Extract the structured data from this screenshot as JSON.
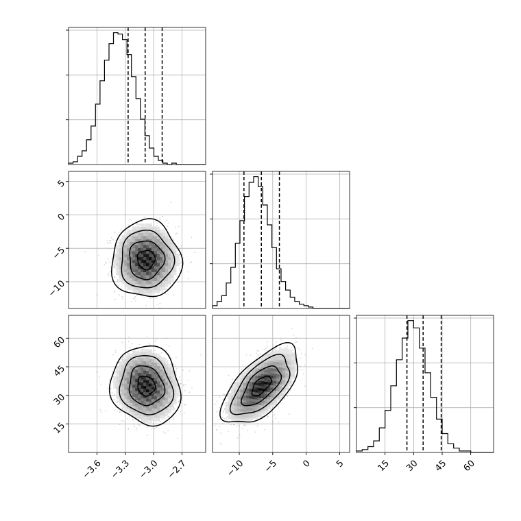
{
  "chart_data": {
    "type": "corner",
    "parameters": [
      {
        "xlim": [
          -3.9,
          -2.45
        ],
        "xticks": [
          -3.6,
          -3.3,
          -3.0,
          -2.7
        ],
        "xtick_labels": [
          "−3.6",
          "−3.3",
          "−3.0",
          "−2.7"
        ]
      },
      {
        "xlim": [
          -14,
          6.5
        ],
        "xticks": [
          -10,
          -5,
          0,
          5
        ],
        "xtick_labels": [
          "−10",
          "−5",
          "0",
          "5"
        ],
        "yticks": [
          5,
          0,
          -5,
          -10
        ],
        "ytick_labels": [
          "5",
          "0",
          "−5",
          "−10"
        ]
      },
      {
        "xlim": [
          0,
          72
        ],
        "xticks": [
          15,
          30,
          45,
          60
        ],
        "xtick_labels": [
          "15",
          "30",
          "45",
          "60"
        ],
        "yticks": [
          60,
          45,
          30,
          15
        ],
        "ytick_labels": [
          "60",
          "45",
          "30",
          "15"
        ]
      }
    ],
    "marginals": [
      {
        "param": 0,
        "bin_start": -3.9,
        "bin_width": 0.0475,
        "counts": [
          1,
          2,
          6,
          10,
          18,
          28,
          44,
          61,
          76,
          88,
          96,
          95,
          91,
          80,
          64,
          48,
          33,
          21,
          12,
          6,
          3,
          1,
          0,
          1,
          0,
          0,
          0,
          0,
          0,
          0,
          0
        ],
        "quantiles": [
          -3.27,
          -3.09,
          -2.91
        ]
      },
      {
        "param": 1,
        "bin_start": -14,
        "bin_width": 0.683,
        "counts": [
          2,
          5,
          9,
          18,
          29,
          46,
          62,
          79,
          89,
          93,
          86,
          73,
          59,
          43,
          28,
          19,
          13,
          8,
          5,
          3,
          2,
          1,
          0,
          0,
          0,
          0,
          0,
          0,
          0,
          0
        ],
        "quantiles": [
          -9.3,
          -6.7,
          -4.0
        ]
      },
      {
        "param": 2,
        "bin_start": 0,
        "bin_width": 3.0,
        "counts": [
          1,
          2,
          4,
          8,
          17,
          29,
          46,
          64,
          79,
          91,
          86,
          72,
          55,
          38,
          23,
          13,
          6,
          3,
          1,
          1,
          0,
          0,
          0,
          0
        ],
        "quantiles": [
          26.5,
          35.0,
          44.5
        ]
      }
    ],
    "joint": [
      {
        "x": 0,
        "y": 1,
        "mean": [
          -3.08,
          -6.7
        ],
        "sd": [
          0.16,
          2.5
        ],
        "corr": 0.0
      },
      {
        "x": 0,
        "y": 2,
        "mean": [
          -3.08,
          35.0
        ],
        "sd": [
          0.16,
          9.0
        ],
        "corr": -0.1
      },
      {
        "x": 1,
        "y": 2,
        "mean": [
          -6.7,
          35.0
        ],
        "sd": [
          2.5,
          9.0
        ],
        "corr": 0.62
      }
    ],
    "contour_levels_sigma": [
      0.5,
      1.0,
      1.5,
      2.0
    ],
    "grid": true
  }
}
